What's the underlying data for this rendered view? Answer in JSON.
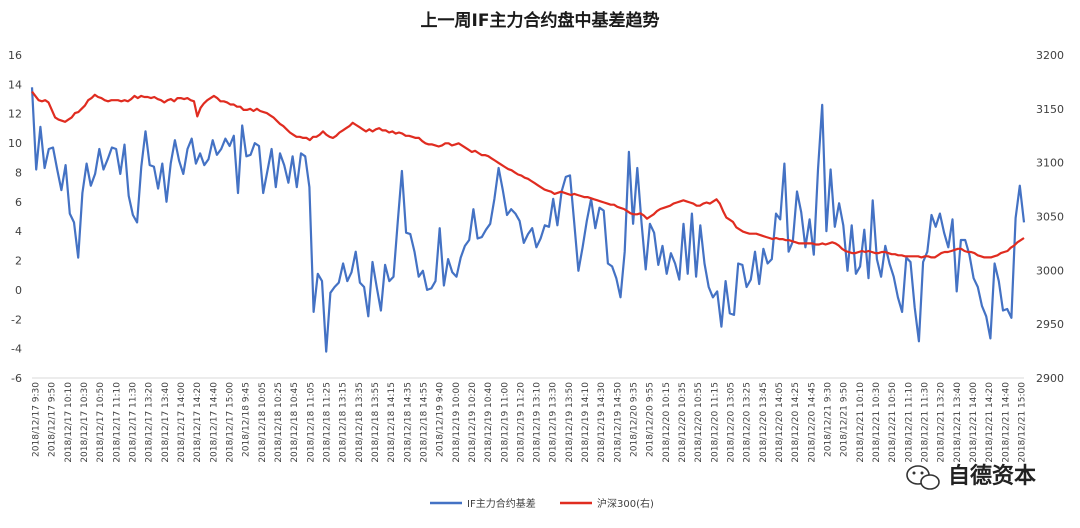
{
  "chart_data": {
    "type": "line",
    "title": "上一周IF主力合约盘中基差趋势",
    "xlabel": "",
    "ylabel": "",
    "ylim": [
      -6,
      16
    ],
    "y_ticks": [
      "-6",
      "-4",
      "-2",
      "0",
      "2",
      "4",
      "6",
      "8",
      "10",
      "12",
      "14",
      "16"
    ],
    "y2lim": [
      2900,
      3200
    ],
    "y2_ticks": [
      "2900",
      "2950",
      "3000",
      "3050",
      "3100",
      "3150",
      "3200"
    ],
    "grid": false,
    "legend_position": "bottom",
    "x_tick_labels": [
      "2018/12/17 9:30",
      "2018/12/17 9:50",
      "2018/12/17 10:10",
      "2018/12/17 10:30",
      "2018/12/17 10:50",
      "2018/12/17 11:10",
      "2018/12/17 11:30",
      "2018/12/17 13:20",
      "2018/12/17 13:40",
      "2018/12/17 14:00",
      "2018/12/17 14:20",
      "2018/12/17 14:40",
      "2018/12/17 15:00",
      "2018/12/18 9:45",
      "2018/12/18 10:05",
      "2018/12/18 10:25",
      "2018/12/18 10:45",
      "2018/12/18 11:05",
      "2018/12/18 11:25",
      "2018/12/18 13:15",
      "2018/12/18 13:35",
      "2018/12/18 13:55",
      "2018/12/18 14:15",
      "2018/12/18 14:35",
      "2018/12/18 14:55",
      "2018/12/19 9:40",
      "2018/12/19 10:00",
      "2018/12/19 10:20",
      "2018/12/19 10:40",
      "2018/12/19 11:00",
      "2018/12/19 11:20",
      "2018/12/19 13:10",
      "2018/12/19 13:30",
      "2018/12/19 13:50",
      "2018/12/19 14:10",
      "2018/12/19 14:30",
      "2018/12/19 14:50",
      "2018/12/20 9:35",
      "2018/12/20 9:55",
      "2018/12/20 10:15",
      "2018/12/20 10:35",
      "2018/12/20 10:55",
      "2018/12/20 11:15",
      "2018/12/20 13:05",
      "2018/12/20 13:25",
      "2018/12/20 13:45",
      "2018/12/20 14:05",
      "2018/12/20 14:25",
      "2018/12/20 14:45",
      "2018/12/21 9:30",
      "2018/12/21 9:50",
      "2018/12/21 10:10",
      "2018/12/21 10:30",
      "2018/12/21 10:50",
      "2018/12/21 11:10",
      "2018/12/21 11:30",
      "2018/12/21 13:20",
      "2018/12/21 13:40",
      "2018/12/21 14:00",
      "2018/12/21 14:20",
      "2018/12/21 14:40",
      "2018/12/21 15:00"
    ],
    "series": [
      {
        "name": "IF主力合约基差",
        "axis": "left",
        "color": "#4472c4",
        "values": [
          13.8,
          8.2,
          11.1,
          8.3,
          9.6,
          9.7,
          8.2,
          6.8,
          8.5,
          5.2,
          4.6,
          2.2,
          6.6,
          8.6,
          7.1,
          7.9,
          9.6,
          8.2,
          8.9,
          9.7,
          9.6,
          7.9,
          9.9,
          6.4,
          5.1,
          4.6,
          8.4,
          10.8,
          8.5,
          8.4,
          6.9,
          8.6,
          6.0,
          8.6,
          10.2,
          8.8,
          7.9,
          9.6,
          10.3,
          8.6,
          9.3,
          8.5,
          8.9,
          10.2,
          9.2,
          9.6,
          10.3,
          9.8,
          10.5,
          6.6,
          11.2,
          9.1,
          9.2,
          10.0,
          9.8,
          6.6,
          8.1,
          9.6,
          7.0,
          9.3,
          8.5,
          7.3,
          9.1,
          7.0,
          9.3,
          9.1,
          7.0,
          -1.5,
          1.1,
          0.6,
          -4.2,
          -0.2,
          0.2,
          0.5,
          1.8,
          0.6,
          1.2,
          2.6,
          0.5,
          0.2,
          -1.8,
          1.9,
          0.2,
          -1.4,
          1.7,
          0.6,
          0.9,
          4.6,
          8.1,
          3.9,
          3.8,
          2.6,
          0.9,
          1.3,
          0.0,
          0.1,
          0.6,
          4.2,
          0.3,
          2.1,
          1.2,
          0.9,
          2.2,
          3.0,
          3.4,
          5.5,
          3.5,
          3.6,
          4.1,
          4.5,
          6.2,
          8.3,
          6.8,
          5.1,
          5.5,
          5.2,
          4.7,
          3.2,
          3.8,
          4.2,
          2.9,
          3.5,
          4.4,
          4.3,
          6.2,
          4.4,
          6.7,
          7.7,
          7.8,
          4.6,
          1.3,
          2.9,
          4.7,
          6.2,
          4.2,
          5.6,
          5.4,
          1.8,
          1.6,
          0.8,
          -0.5,
          2.6,
          9.4,
          4.5,
          8.3,
          4.6,
          1.4,
          4.5,
          3.9,
          1.7,
          3.0,
          1.1,
          2.5,
          1.8,
          0.7,
          4.5,
          1.1,
          5.2,
          0.9,
          4.4,
          1.8,
          0.2,
          -0.5,
          -0.1,
          -2.5,
          0.6,
          -1.6,
          -1.7,
          1.8,
          1.7,
          0.2,
          0.7,
          2.6,
          0.4,
          2.8,
          1.8,
          2.1,
          5.2,
          4.8,
          8.6,
          2.6,
          3.3,
          6.7,
          5.3,
          2.9,
          4.8,
          2.4,
          8.2,
          12.6,
          4.0,
          8.2,
          4.3,
          5.9,
          4.4,
          1.3,
          4.4,
          1.1,
          1.6,
          4.1,
          0.8,
          6.1,
          2.1,
          0.9,
          3.0,
          1.8,
          0.9,
          -0.5,
          -1.5,
          2.2,
          1.9,
          -1.2,
          -3.5,
          1.9,
          2.6,
          5.1,
          4.3,
          5.2,
          3.9,
          2.9,
          4.8,
          -0.1,
          3.4,
          3.4,
          2.4,
          0.8,
          0.2,
          -1.1,
          -1.8,
          -3.3,
          1.8,
          0.6,
          -1.4,
          -1.3,
          -1.9,
          4.9,
          7.1,
          4.6
        ]
      },
      {
        "name": "沪深300(右)",
        "axis": "right",
        "color": "#e02c20",
        "values": [
          3166,
          3162,
          3158,
          3157,
          3158,
          3156,
          3149,
          3142,
          3140,
          3139,
          3138,
          3140,
          3142,
          3146,
          3147,
          3150,
          3153,
          3158,
          3160,
          3163,
          3161,
          3160,
          3158,
          3157,
          3158,
          3158,
          3158,
          3157,
          3158,
          3157,
          3159,
          3162,
          3160,
          3162,
          3161,
          3161,
          3160,
          3161,
          3159,
          3158,
          3156,
          3158,
          3159,
          3157,
          3160,
          3160,
          3159,
          3160,
          3158,
          3157,
          3143,
          3151,
          3155,
          3158,
          3160,
          3162,
          3160,
          3157,
          3157,
          3156,
          3154,
          3154,
          3152,
          3152,
          3149,
          3149,
          3150,
          3148,
          3150,
          3148,
          3147,
          3146,
          3144,
          3142,
          3139,
          3136,
          3134,
          3131,
          3128,
          3126,
          3124,
          3124,
          3123,
          3123,
          3121,
          3124,
          3124,
          3126,
          3129,
          3126,
          3124,
          3123,
          3125,
          3128,
          3130,
          3132,
          3134,
          3137,
          3135,
          3133,
          3131,
          3129,
          3131,
          3129,
          3131,
          3132,
          3130,
          3130,
          3128,
          3129,
          3127,
          3128,
          3127,
          3125,
          3125,
          3124,
          3123,
          3123,
          3120,
          3118,
          3117,
          3117,
          3116,
          3115,
          3116,
          3118,
          3118,
          3116,
          3117,
          3118,
          3116,
          3114,
          3112,
          3110,
          3111,
          3109,
          3107,
          3107,
          3106,
          3104,
          3102,
          3100,
          3098,
          3096,
          3094,
          3093,
          3091,
          3089,
          3088,
          3086,
          3085,
          3083,
          3081,
          3079,
          3077,
          3075,
          3074,
          3073,
          3071,
          3072,
          3073,
          3072,
          3071,
          3070,
          3071,
          3070,
          3069,
          3068,
          3068,
          3067,
          3066,
          3065,
          3064,
          3063,
          3062,
          3061,
          3061,
          3059,
          3058,
          3057,
          3055,
          3053,
          3052,
          3052,
          3053,
          3051,
          3048,
          3050,
          3052,
          3055,
          3057,
          3058,
          3059,
          3060,
          3062,
          3063,
          3064,
          3065,
          3064,
          3063,
          3062,
          3060,
          3060,
          3062,
          3063,
          3062,
          3064,
          3066,
          3062,
          3055,
          3049,
          3047,
          3045,
          3040,
          3038,
          3036,
          3035,
          3034,
          3034,
          3034,
          3033,
          3032,
          3031,
          3030,
          3029,
          3030,
          3029,
          3029,
          3028,
          3028,
          3027,
          3026,
          3025,
          3025,
          3025,
          3025,
          3025,
          3024,
          3024,
          3025,
          3024,
          3025,
          3026,
          3025,
          3023,
          3020,
          3018,
          3017,
          3016,
          3016,
          3017,
          3018,
          3017,
          3018,
          3017,
          3016,
          3016,
          3017,
          3017,
          3016,
          3015,
          3015,
          3014,
          3014,
          3013,
          3013,
          3013,
          3013,
          3013,
          3012,
          3013,
          3013,
          3012,
          3012,
          3014,
          3016,
          3017,
          3017,
          3018,
          3019,
          3020,
          3020,
          3018,
          3017,
          3017,
          3016,
          3014,
          3013,
          3012,
          3012,
          3012,
          3013,
          3014,
          3016,
          3017,
          3018,
          3021,
          3023,
          3026,
          3028,
          3030
        ]
      }
    ],
    "watermark": "自德资本"
  }
}
